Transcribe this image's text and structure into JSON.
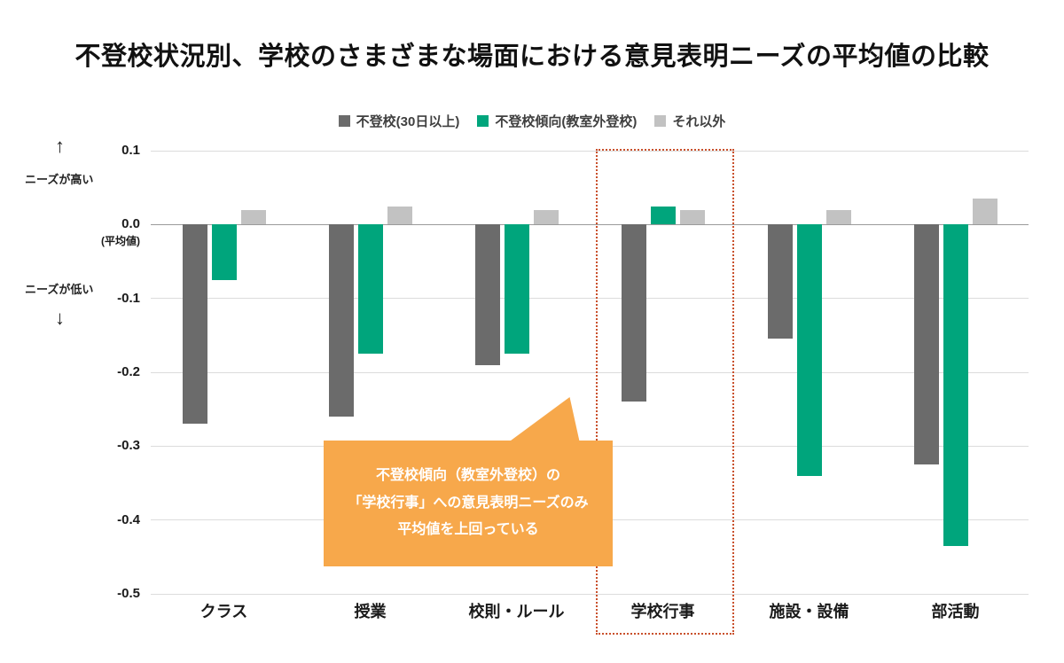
{
  "axis_annotations": {
    "up_arrow": "↑",
    "high": "ニーズが高い",
    "low": "ニーズが低い",
    "down_arrow": "↓",
    "zero_sublabel": "(平均値)"
  },
  "callout": {
    "lines": [
      "不登校傾向（教室外登校）の",
      "「学校行事」への意見表明ニーズのみ",
      "平均値を上回っている"
    ]
  },
  "colors": {
    "series": [
      "#6b6b6b",
      "#00a57c",
      "#c2c2c2"
    ],
    "callout_bg": "#f7a84b",
    "highlight_border": "#c9502c",
    "gridline": "#dcdcdc",
    "zero_line": "#9a9a9a",
    "title_text": "#111111"
  },
  "chart_data": {
    "type": "bar",
    "title": "不登校状況別、学校のさまざまな場面における意見表明ニーズの平均値の比較",
    "categories": [
      "クラス",
      "授業",
      "校則・ルール",
      "学校行事",
      "施設・設備",
      "部活動"
    ],
    "series": [
      {
        "name": "不登校(30日以上)",
        "values": [
          -0.27,
          -0.26,
          -0.19,
          -0.24,
          -0.155,
          -0.325
        ]
      },
      {
        "name": "不登校傾向(教室外登校)",
        "values": [
          -0.075,
          -0.175,
          -0.175,
          0.025,
          -0.34,
          -0.435
        ]
      },
      {
        "name": "それ以外",
        "values": [
          0.02,
          0.025,
          0.02,
          0.02,
          0.02,
          0.035
        ]
      }
    ],
    "ylabel": "",
    "xlabel": "",
    "ylim": [
      -0.5,
      0.1
    ],
    "yticks": [
      0.1,
      0.0,
      -0.1,
      -0.2,
      -0.3,
      -0.4,
      -0.5
    ],
    "ytick_labels": [
      "0.1",
      "0.0",
      "-0.1",
      "-0.2",
      "-0.3",
      "-0.4",
      "-0.5"
    ],
    "legend_position": "top",
    "grid": true,
    "highlighted_category": "学校行事"
  }
}
